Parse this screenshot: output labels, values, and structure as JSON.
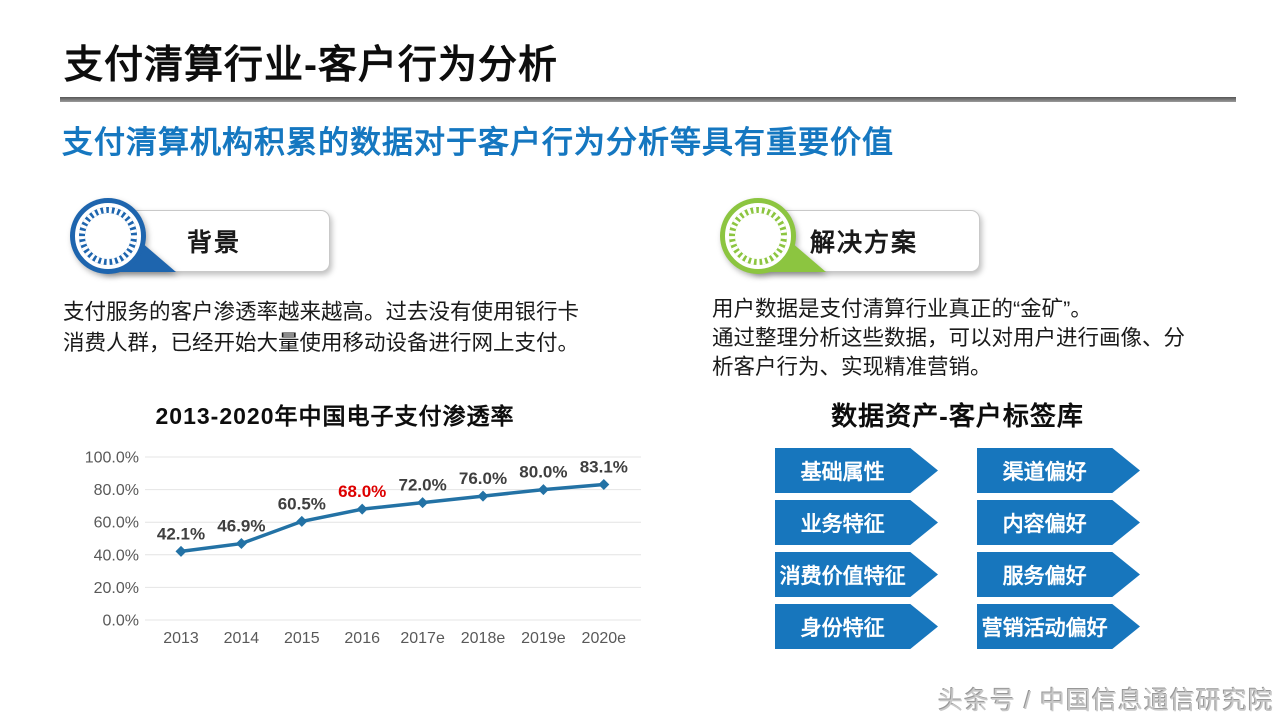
{
  "slide": {
    "title": "支付清算行业-客户行为分析",
    "subtitle": "支付清算机构积累的数据对于客户行为分析等具有重要价值",
    "watermark": "头条号 / 中国信息通信研究院"
  },
  "colors": {
    "subtitle_blue": "#1577C0",
    "badge_blue": "#1E65AE",
    "badge_green": "#8CC540",
    "tag_blue": "#1776BD",
    "line_blue": "#2372A5",
    "highlight_red": "#DE0000"
  },
  "background_section": {
    "badge_label": "背景",
    "body_lines": [
      "支付服务的客户渗透率越来越高。过去没有使用银行卡",
      "消费人群，已经开始大量使用移动设备进行网上支付。"
    ]
  },
  "solution_section": {
    "badge_label": "解决方案",
    "body_lines": [
      "用户数据是支付清算行业真正的“金矿”。",
      "通过整理分析这些数据，可以对用户进行画像、分",
      "析客户行为、实现精准营销。"
    ]
  },
  "chart_data": {
    "type": "line",
    "title": "2013-2020年中国电子支付渗透率",
    "categories": [
      "2013",
      "2014",
      "2015",
      "2016",
      "2017e",
      "2018e",
      "2019e",
      "2020e"
    ],
    "values": [
      42.1,
      46.9,
      60.5,
      68.0,
      72.0,
      76.0,
      80.0,
      83.1
    ],
    "labels": [
      "42.1%",
      "46.9%",
      "60.5%",
      "68.0%",
      "72.0%",
      "76.0%",
      "80.0%",
      "83.1%"
    ],
    "highlight_index": 3,
    "y_ticks": [
      "0.0%",
      "20.0%",
      "40.0%",
      "60.0%",
      "80.0%",
      "100.0%"
    ],
    "xlabel": "",
    "ylabel": "",
    "ylim": [
      0,
      100
    ],
    "grid": true,
    "legend": "none"
  },
  "tag_library": {
    "title": "数据资产-客户标签库",
    "left_column": [
      "基础属性",
      "业务特征",
      "消费价值特征",
      "身份特征"
    ],
    "right_column": [
      "渠道偏好",
      "内容偏好",
      "服务偏好",
      "营销活动偏好"
    ]
  }
}
